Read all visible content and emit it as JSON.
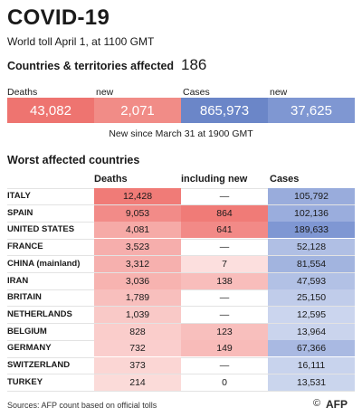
{
  "header": {
    "title": "COVID-19",
    "subtitle": "World toll April 1, at 1100 GMT",
    "affected_label": "Countries & territories affected",
    "affected_value": "186"
  },
  "totals": {
    "deaths_label": "Deaths",
    "new_deaths_label": "new",
    "cases_label": "Cases",
    "new_cases_label": "new",
    "deaths": "43,082",
    "new_deaths": "2,071",
    "cases": "865,973",
    "new_cases": "37,625",
    "since_note": "New since  March 31 at 1900 GMT"
  },
  "colors": {
    "deaths_box": "#ee7470",
    "new_deaths_box": "#f18c87",
    "cases_box": "#6b86c8",
    "new_cases_box": "#7f97d2",
    "deaths_scale_max": "#f07b77",
    "deaths_scale_min": "#fde9e8",
    "new_scale_max": "#f07b77",
    "new_scale_min": "#fde9e8",
    "cases_scale_max": "#7f97d3",
    "cases_scale_min": "#e6ebf7"
  },
  "chart_data": {
    "type": "table",
    "title": "Worst affected countries",
    "columns": [
      "Deaths",
      "including new",
      "Cases"
    ],
    "rows": [
      {
        "country": "ITALY",
        "deaths": 12428,
        "deaths_text": "12,428",
        "new": null,
        "new_text": "—",
        "cases": 105792,
        "cases_text": "105,792"
      },
      {
        "country": "SPAIN",
        "deaths": 9053,
        "deaths_text": "9,053",
        "new": 864,
        "new_text": "864",
        "cases": 102136,
        "cases_text": "102,136"
      },
      {
        "country": "UNITED STATES",
        "deaths": 4081,
        "deaths_text": "4,081",
        "new": 641,
        "new_text": "641",
        "cases": 189633,
        "cases_text": "189,633"
      },
      {
        "country": "FRANCE",
        "deaths": 3523,
        "deaths_text": "3,523",
        "new": null,
        "new_text": "—",
        "cases": 52128,
        "cases_text": "52,128"
      },
      {
        "country": "CHINA (mainland)",
        "deaths": 3312,
        "deaths_text": "3,312",
        "new": 7,
        "new_text": "7",
        "cases": 81554,
        "cases_text": "81,554"
      },
      {
        "country": "IRAN",
        "deaths": 3036,
        "deaths_text": "3,036",
        "new": 138,
        "new_text": "138",
        "cases": 47593,
        "cases_text": "47,593"
      },
      {
        "country": "BRITAIN",
        "deaths": 1789,
        "deaths_text": "1,789",
        "new": null,
        "new_text": "—",
        "cases": 25150,
        "cases_text": "25,150"
      },
      {
        "country": "NETHERLANDS",
        "deaths": 1039,
        "deaths_text": "1,039",
        "new": null,
        "new_text": "—",
        "cases": 12595,
        "cases_text": "12,595"
      },
      {
        "country": "BELGIUM",
        "deaths": 828,
        "deaths_text": "828",
        "new": 123,
        "new_text": "123",
        "cases": 13964,
        "cases_text": "13,964"
      },
      {
        "country": "GERMANY",
        "deaths": 732,
        "deaths_text": "732",
        "new": 149,
        "new_text": "149",
        "cases": 67366,
        "cases_text": "67,366"
      },
      {
        "country": "SWITZERLAND",
        "deaths": 373,
        "deaths_text": "373",
        "new": null,
        "new_text": "—",
        "cases": 16111,
        "cases_text": "16,111"
      },
      {
        "country": "TURKEY",
        "deaths": 214,
        "deaths_text": "214",
        "new": 0,
        "new_text": "0",
        "cases": 13531,
        "cases_text": "13,531"
      }
    ]
  },
  "footer": {
    "source": "Sources: AFP count based on official tolls",
    "copyright": "©",
    "logo": "AFP"
  }
}
